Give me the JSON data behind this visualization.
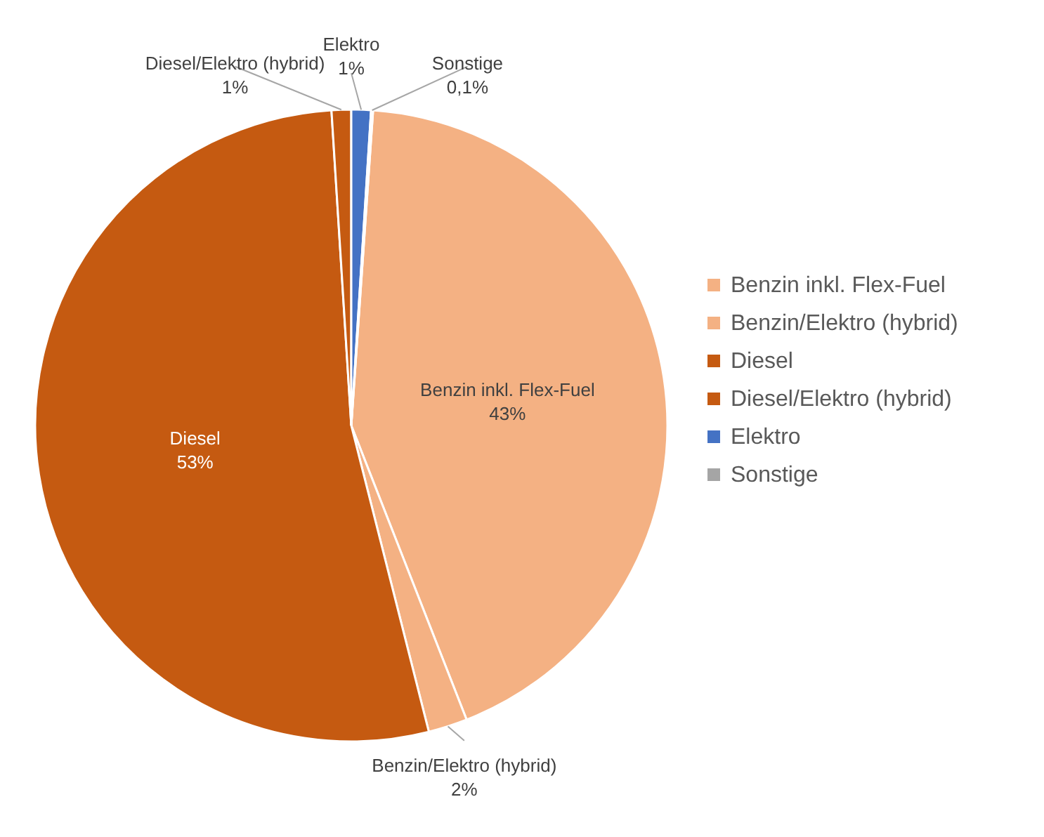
{
  "chart_data": {
    "type": "pie",
    "categories": [
      "Benzin inkl. Flex-Fuel",
      "Benzin/Elektro (hybrid)",
      "Diesel",
      "Diesel/Elektro (hybrid)",
      "Elektro",
      "Sonstige"
    ],
    "values": [
      43,
      2,
      53,
      1,
      1,
      0.1
    ],
    "value_labels": [
      "43%",
      "2%",
      "53%",
      "1%",
      "1%",
      "0,1%"
    ],
    "colors": [
      "#f4b183",
      "#f4b183",
      "#c55a11",
      "#c55a11",
      "#4472c4",
      "#a5a5a5"
    ],
    "legend": "right"
  }
}
